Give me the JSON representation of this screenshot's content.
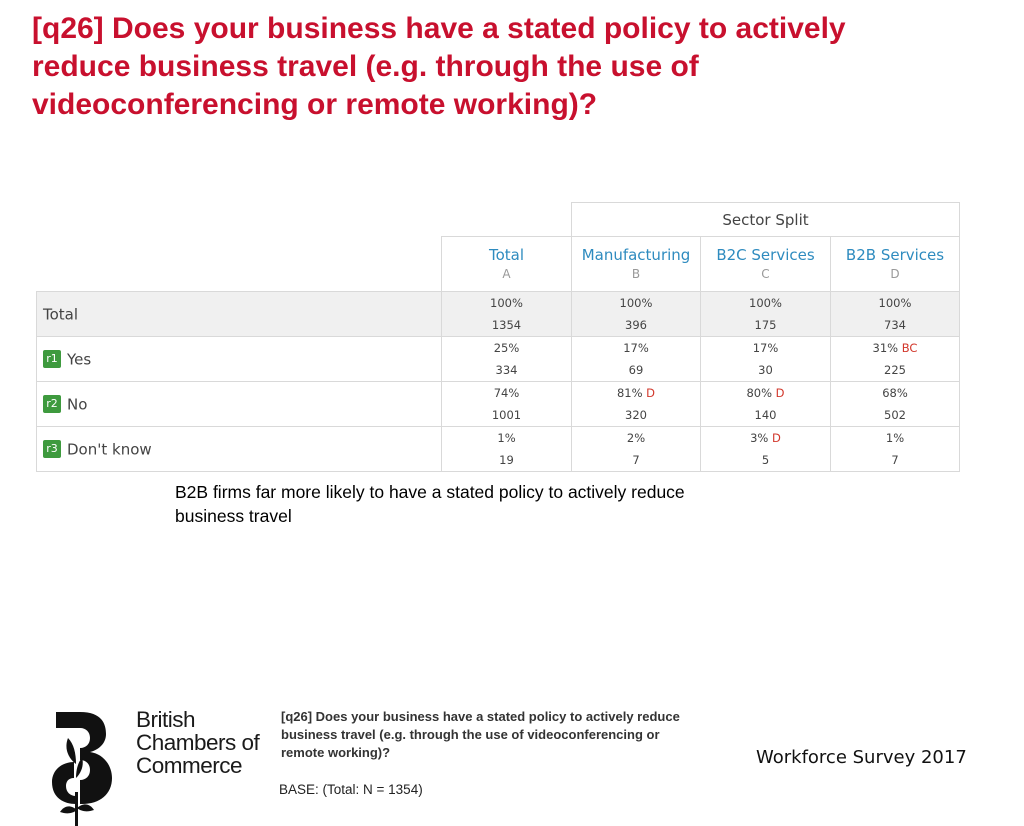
{
  "title": "[q26] Does your business have a stated policy to actively reduce business travel (e.g. through the use of videoconferencing or remote working)?",
  "table": {
    "group_header": "Sector Split",
    "columns": [
      {
        "name": "Total",
        "letter": "A"
      },
      {
        "name": "Manufacturing",
        "letter": "B"
      },
      {
        "name": "B2C Services",
        "letter": "C"
      },
      {
        "name": "B2B Services",
        "letter": "D"
      }
    ],
    "rows": [
      {
        "badge": "",
        "label": "Total",
        "cells": [
          {
            "pct": "100%",
            "sig": "",
            "count": "1354"
          },
          {
            "pct": "100%",
            "sig": "",
            "count": "396"
          },
          {
            "pct": "100%",
            "sig": "",
            "count": "175"
          },
          {
            "pct": "100%",
            "sig": "",
            "count": "734"
          }
        ]
      },
      {
        "badge": "r1",
        "label": "Yes",
        "cells": [
          {
            "pct": "25%",
            "sig": "",
            "count": "334"
          },
          {
            "pct": "17%",
            "sig": "",
            "count": "69"
          },
          {
            "pct": "17%",
            "sig": "",
            "count": "30"
          },
          {
            "pct": "31%",
            "sig": "BC",
            "count": "225"
          }
        ]
      },
      {
        "badge": "r2",
        "label": "No",
        "cells": [
          {
            "pct": "74%",
            "sig": "",
            "count": "1001"
          },
          {
            "pct": "81%",
            "sig": "D",
            "count": "320"
          },
          {
            "pct": "80%",
            "sig": "D",
            "count": "140"
          },
          {
            "pct": "68%",
            "sig": "",
            "count": "502"
          }
        ]
      },
      {
        "badge": "r3",
        "label": "Don't know",
        "cells": [
          {
            "pct": "1%",
            "sig": "",
            "count": "19"
          },
          {
            "pct": "2%",
            "sig": "",
            "count": "7"
          },
          {
            "pct": "3%",
            "sig": "D",
            "count": "5"
          },
          {
            "pct": "1%",
            "sig": "",
            "count": "7"
          }
        ]
      }
    ]
  },
  "note": "B2B firms far more likely to have a stated policy to actively reduce business travel",
  "footer": {
    "logo_lines": [
      "British",
      "Chambers of",
      "Commerce"
    ],
    "question": "[q26] Does your business have a stated policy to actively reduce business travel (e.g. through the use of videoconferencing or remote working)?",
    "base": "BASE: (Total: N = 1354)",
    "survey": "Workforce Survey 2017"
  },
  "colors": {
    "title": "#c8102e",
    "column_header": "#2e8bbf",
    "significance": "#d2372b",
    "badge": "#3e9a3e"
  }
}
